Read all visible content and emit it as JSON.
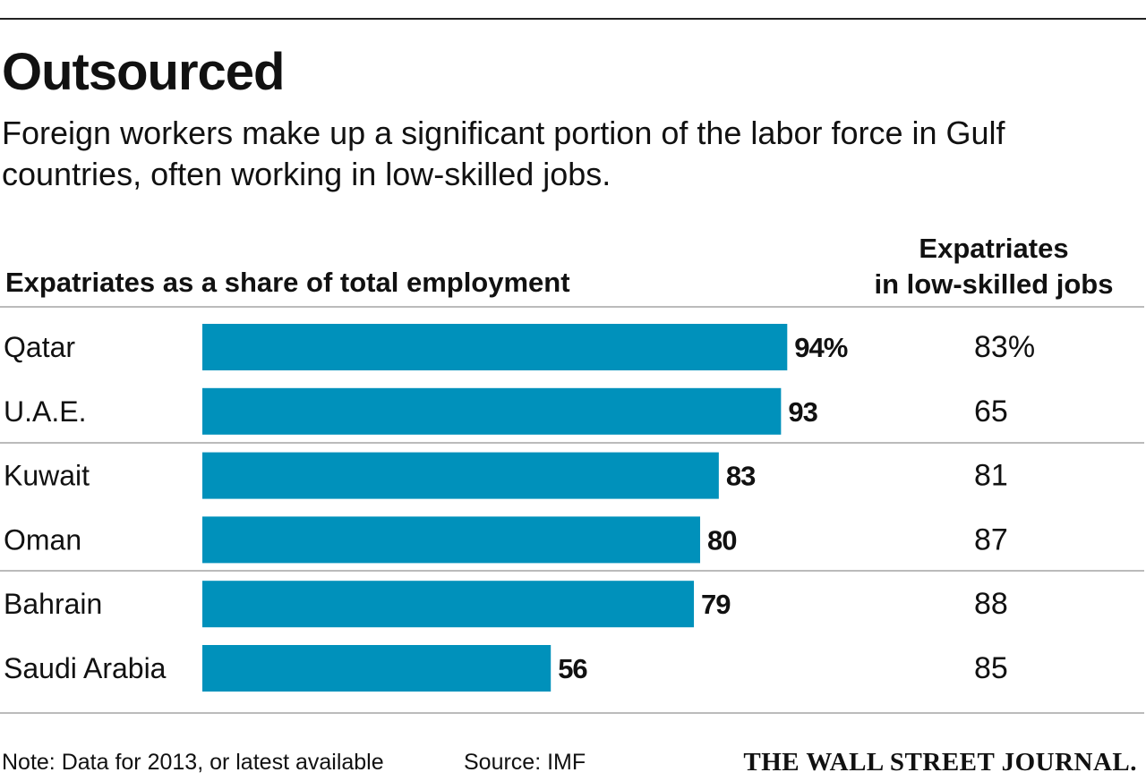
{
  "title": "Outsourced",
  "subtitle": "Foreign workers make up a significant portion of the labor force in Gulf countries, often working in low-skilled jobs.",
  "colors": {
    "bar": "#0091bb",
    "rule": "#bbbbbb",
    "text": "#111111"
  },
  "chart_data": {
    "type": "bar",
    "orientation": "horizontal",
    "title": "Expatriates as a share of total employment",
    "categories": [
      "Qatar",
      "U.A.E.",
      "Kuwait",
      "Oman",
      "Bahrain",
      "Saudi Arabia"
    ],
    "values": [
      94,
      93,
      83,
      80,
      79,
      56
    ],
    "value_labels": [
      "94%",
      "93",
      "83",
      "80",
      "79",
      "56"
    ],
    "xlim": [
      0,
      100
    ],
    "grid": false,
    "secondary_column": {
      "title": [
        "Expatriates",
        "in low-skilled jobs"
      ],
      "values": [
        83,
        65,
        81,
        87,
        88,
        85
      ],
      "value_labels": [
        "83%",
        "65",
        "81",
        "87",
        "88",
        "85"
      ]
    }
  },
  "footer": {
    "note": "Note: Data for 2013, or latest available",
    "source": "Source: IMF",
    "logo": "THE WALL STREET JOURNAL."
  }
}
